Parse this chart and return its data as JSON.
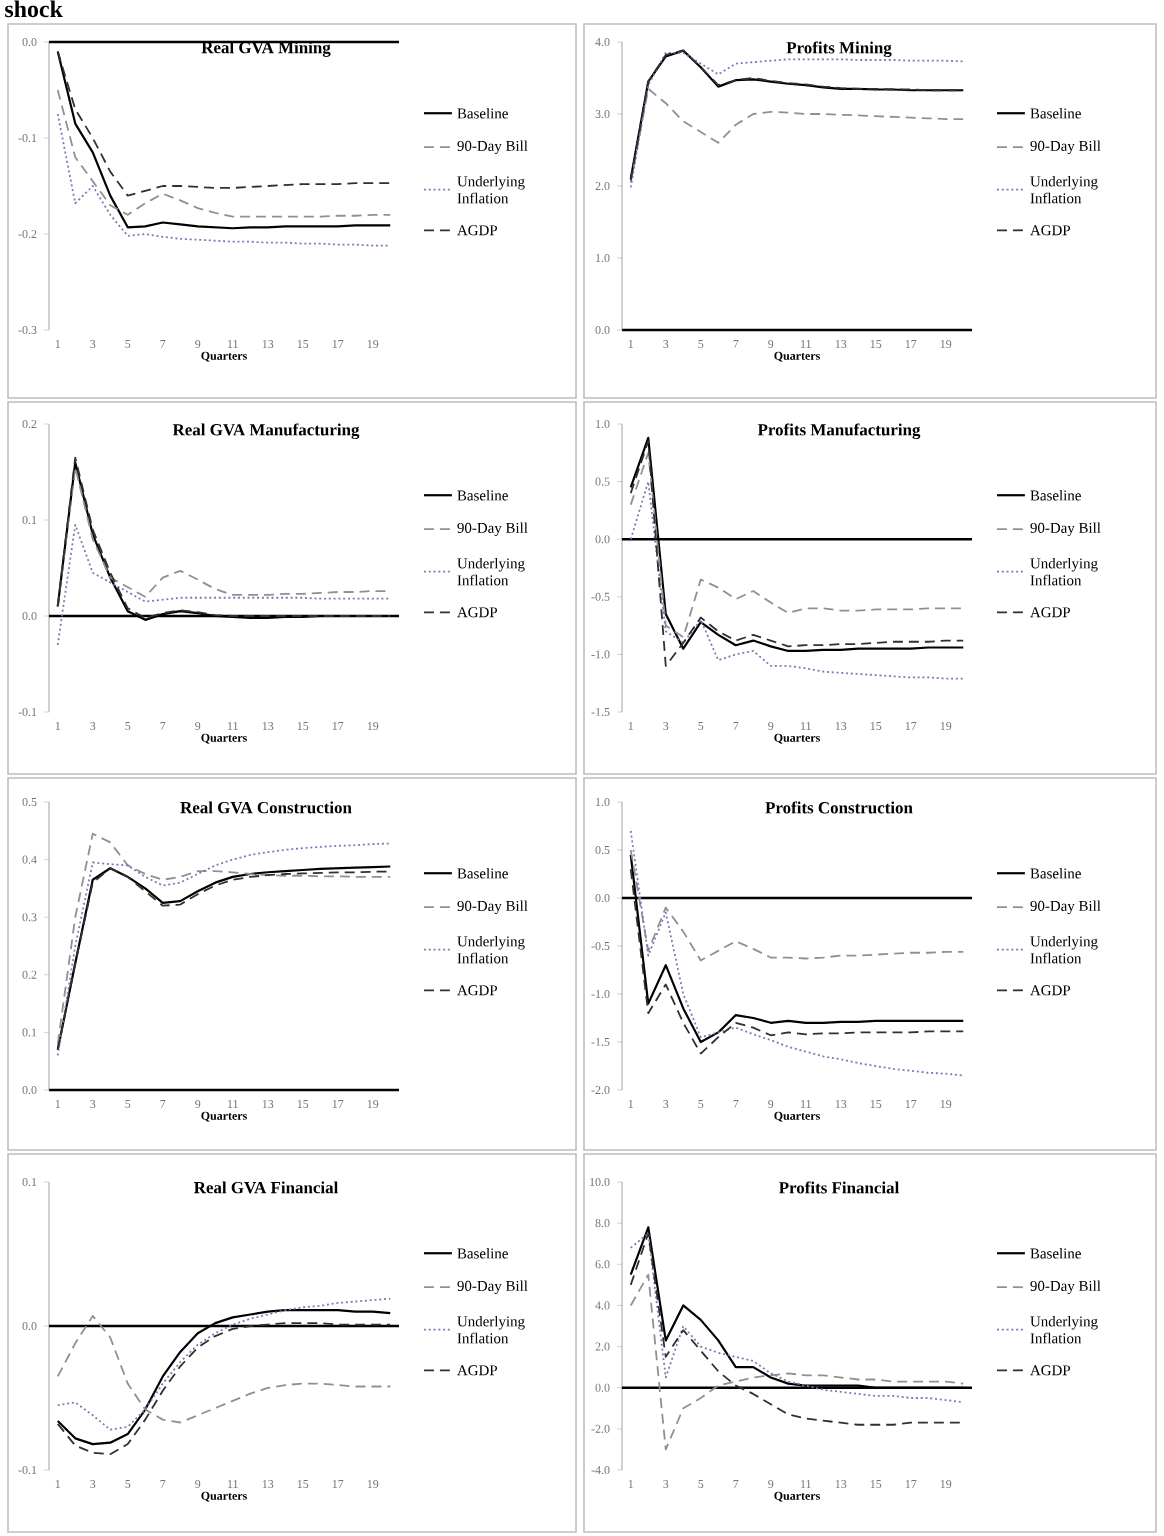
{
  "chart_data": [
    {
      "type": "line",
      "title": "Real GVA Mining",
      "xlabel": "Quarters",
      "annotations": [
        "shock"
      ],
      "legend": "right",
      "categories": [
        "1",
        null,
        "3",
        null,
        "5",
        null,
        "7",
        null,
        "9",
        null,
        "11",
        null,
        "13",
        null,
        "15",
        null,
        "17",
        null,
        "19",
        null
      ],
      "ylim": [
        -0.3,
        0
      ],
      "yticks": [
        {
          "value": -0.3,
          "label": "-0.3"
        },
        {
          "value": -0.2,
          "label": "-0.2"
        },
        {
          "value": -0.1,
          "label": "-0.1"
        },
        {
          "value": 0,
          "label": "0.0"
        }
      ],
      "ref_lines": [
        {
          "axis": "y",
          "value": 0,
          "color": "#000000"
        }
      ],
      "series": [
        {
          "name": "Baseline",
          "color": "#000000",
          "line_style": "solid",
          "values": [
            -0.01,
            -0.085,
            -0.115,
            -0.16,
            -0.193,
            -0.192,
            -0.188,
            -0.19,
            -0.192,
            -0.193,
            -0.194,
            -0.193,
            -0.193,
            -0.192,
            -0.192,
            -0.192,
            -0.192,
            -0.191,
            -0.191,
            -0.191
          ]
        },
        {
          "name": "90-Day Bill",
          "color": "#909090",
          "line_style": "dashed",
          "values": [
            -0.05,
            -0.12,
            -0.145,
            -0.17,
            -0.18,
            -0.168,
            -0.158,
            -0.165,
            -0.173,
            -0.178,
            -0.182,
            -0.182,
            -0.182,
            -0.182,
            -0.182,
            -0.182,
            -0.181,
            -0.181,
            -0.18,
            -0.18
          ]
        },
        {
          "name": "Underlying Inflation",
          "color": "#7a7ab8",
          "line_style": "dotted",
          "values": [
            -0.075,
            -0.168,
            -0.15,
            -0.18,
            -0.202,
            -0.2,
            -0.203,
            -0.205,
            -0.206,
            -0.207,
            -0.208,
            -0.208,
            -0.209,
            -0.209,
            -0.21,
            -0.21,
            -0.211,
            -0.211,
            -0.212,
            -0.212
          ]
        },
        {
          "name": "AGDP",
          "color": "#303030",
          "line_style": "dashed",
          "values": [
            -0.01,
            -0.07,
            -0.1,
            -0.135,
            -0.16,
            -0.155,
            -0.15,
            -0.15,
            -0.151,
            -0.152,
            -0.152,
            -0.151,
            -0.15,
            -0.149,
            -0.148,
            -0.148,
            -0.148,
            -0.147,
            -0.147,
            -0.147
          ]
        }
      ]
    },
    {
      "type": "line",
      "title": "Profits Mining",
      "xlabel": "Quarters",
      "legend": "right",
      "categories": [
        "1",
        null,
        "3",
        null,
        "5",
        null,
        "7",
        null,
        "9",
        null,
        "11",
        null,
        "13",
        null,
        "15",
        null,
        "17",
        null,
        "19",
        null
      ],
      "ylim": [
        0,
        4
      ],
      "yticks": [
        {
          "value": 0,
          "label": "0.0"
        },
        {
          "value": 1,
          "label": "1.0"
        },
        {
          "value": 2,
          "label": "2.0"
        },
        {
          "value": 3,
          "label": "3.0"
        },
        {
          "value": 4,
          "label": "4.0"
        }
      ],
      "series": [
        {
          "name": "Baseline",
          "color": "#000000",
          "line_style": "solid",
          "values": [
            2.1,
            3.45,
            3.8,
            3.88,
            3.65,
            3.38,
            3.47,
            3.48,
            3.45,
            3.42,
            3.4,
            3.37,
            3.35,
            3.35,
            3.34,
            3.34,
            3.33,
            3.33,
            3.33,
            3.33
          ]
        },
        {
          "name": "90-Day Bill",
          "color": "#909090",
          "line_style": "dashed",
          "values": [
            2.05,
            3.35,
            3.15,
            2.9,
            2.75,
            2.6,
            2.85,
            3.0,
            3.03,
            3.02,
            3.0,
            3.0,
            2.99,
            2.98,
            2.97,
            2.96,
            2.95,
            2.94,
            2.93,
            2.93
          ]
        },
        {
          "name": "Underlying Inflation",
          "color": "#7a7ab8",
          "line_style": "dotted",
          "values": [
            1.98,
            3.4,
            3.85,
            3.85,
            3.7,
            3.55,
            3.7,
            3.72,
            3.74,
            3.76,
            3.76,
            3.76,
            3.76,
            3.75,
            3.75,
            3.75,
            3.74,
            3.74,
            3.74,
            3.73
          ]
        },
        {
          "name": "AGDP",
          "color": "#303030",
          "line_style": "dashed",
          "values": [
            2.08,
            3.45,
            3.82,
            3.88,
            3.65,
            3.4,
            3.47,
            3.5,
            3.46,
            3.43,
            3.41,
            3.38,
            3.36,
            3.35,
            3.35,
            3.34,
            3.34,
            3.33,
            3.33,
            3.33
          ]
        }
      ]
    },
    {
      "type": "line",
      "title": "Real GVA Manufacturing",
      "xlabel": "Quarters",
      "legend": "right",
      "categories": [
        "1",
        null,
        "3",
        null,
        "5",
        null,
        "7",
        null,
        "9",
        null,
        "11",
        null,
        "13",
        null,
        "15",
        null,
        "17",
        null,
        "19",
        null
      ],
      "ylim": [
        -0.1,
        0.2
      ],
      "yticks": [
        {
          "value": -0.1,
          "label": "-0.1"
        },
        {
          "value": 0,
          "label": "0.0"
        },
        {
          "value": 0.1,
          "label": "0.1"
        },
        {
          "value": 0.2,
          "label": "0.2"
        }
      ],
      "ref_lines": [
        {
          "axis": "y",
          "value": 0,
          "color": "#000000"
        }
      ],
      "series": [
        {
          "name": "Baseline",
          "color": "#000000",
          "line_style": "solid",
          "values": [
            0.01,
            0.16,
            0.085,
            0.04,
            0.005,
            -0.004,
            0.002,
            0.005,
            0.003,
            0.0,
            -0.001,
            -0.002,
            -0.002,
            -0.001,
            -0.001,
            0,
            0,
            0,
            0,
            0
          ]
        },
        {
          "name": "90-Day Bill",
          "color": "#909090",
          "line_style": "dashed",
          "values": [
            0.01,
            0.155,
            0.08,
            0.04,
            0.03,
            0.02,
            0.04,
            0.047,
            0.038,
            0.028,
            0.022,
            0.022,
            0.022,
            0.023,
            0.023,
            0.024,
            0.025,
            0.025,
            0.026,
            0.026
          ]
        },
        {
          "name": "Underlying Inflation",
          "color": "#7a7ab8",
          "line_style": "dotted",
          "values": [
            -0.03,
            0.095,
            0.045,
            0.035,
            0.025,
            0.015,
            0.017,
            0.019,
            0.019,
            0.019,
            0.019,
            0.019,
            0.019,
            0.019,
            0.019,
            0.018,
            0.018,
            0.018,
            0.018,
            0.018
          ]
        },
        {
          "name": "AGDP",
          "color": "#303030",
          "line_style": "dashed",
          "values": [
            0.01,
            0.165,
            0.09,
            0.045,
            0.008,
            -0.002,
            0.003,
            0.006,
            0.004,
            0.001,
            0,
            0,
            0,
            0,
            0,
            0,
            0,
            0,
            0,
            0
          ]
        }
      ]
    },
    {
      "type": "line",
      "title": "Profits Manufacturing",
      "xlabel": "Quarters",
      "legend": "right",
      "categories": [
        "1",
        null,
        "3",
        null,
        "5",
        null,
        "7",
        null,
        "9",
        null,
        "11",
        null,
        "13",
        null,
        "15",
        null,
        "17",
        null,
        "19",
        null
      ],
      "ylim": [
        -1.5,
        1.0
      ],
      "yticks": [
        {
          "value": -1.5,
          "label": "-1.5"
        },
        {
          "value": -1.0,
          "label": "-1.0"
        },
        {
          "value": -0.5,
          "label": "-0.5"
        },
        {
          "value": 0,
          "label": "0.0"
        },
        {
          "value": 0.5,
          "label": "0.5"
        },
        {
          "value": 1.0,
          "label": "1.0"
        }
      ],
      "ref_lines": [
        {
          "axis": "y",
          "value": 0,
          "color": "#000000"
        }
      ],
      "series": [
        {
          "name": "Baseline",
          "color": "#000000",
          "line_style": "solid",
          "values": [
            0.45,
            0.88,
            -0.65,
            -0.95,
            -0.72,
            -0.83,
            -0.92,
            -0.88,
            -0.93,
            -0.97,
            -0.97,
            -0.96,
            -0.96,
            -0.95,
            -0.95,
            -0.95,
            -0.95,
            -0.94,
            -0.94,
            -0.94
          ]
        },
        {
          "name": "90-Day Bill",
          "color": "#909090",
          "line_style": "dashed",
          "values": [
            0.3,
            0.75,
            -0.75,
            -0.85,
            -0.35,
            -0.42,
            -0.52,
            -0.45,
            -0.55,
            -0.64,
            -0.6,
            -0.6,
            -0.62,
            -0.62,
            -0.61,
            -0.61,
            -0.61,
            -0.6,
            -0.6,
            -0.6
          ]
        },
        {
          "name": "Underlying Inflation",
          "color": "#7a7ab8",
          "line_style": "dotted",
          "values": [
            0.0,
            0.5,
            -0.8,
            -0.9,
            -0.7,
            -1.05,
            -1.0,
            -0.97,
            -1.1,
            -1.1,
            -1.12,
            -1.15,
            -1.16,
            -1.17,
            -1.18,
            -1.19,
            -1.2,
            -1.2,
            -1.21,
            -1.21
          ]
        },
        {
          "name": "AGDP",
          "color": "#303030",
          "line_style": "dashed",
          "values": [
            0.4,
            0.85,
            -1.1,
            -0.9,
            -0.68,
            -0.8,
            -0.88,
            -0.83,
            -0.88,
            -0.93,
            -0.92,
            -0.92,
            -0.91,
            -0.91,
            -0.9,
            -0.89,
            -0.89,
            -0.89,
            -0.88,
            -0.88
          ]
        }
      ]
    },
    {
      "type": "line",
      "title": "Real GVA Construction",
      "xlabel": "Quarters",
      "legend": "right",
      "categories": [
        "1",
        null,
        "3",
        null,
        "5",
        null,
        "7",
        null,
        "9",
        null,
        "11",
        null,
        "13",
        null,
        "15",
        null,
        "17",
        null,
        "19",
        null
      ],
      "ylim": [
        0,
        0.5
      ],
      "yticks": [
        {
          "value": 0,
          "label": "0.0"
        },
        {
          "value": 0.1,
          "label": "0.1"
        },
        {
          "value": 0.2,
          "label": "0.2"
        },
        {
          "value": 0.3,
          "label": "0.3"
        },
        {
          "value": 0.4,
          "label": "0.4"
        },
        {
          "value": 0.5,
          "label": "0.5"
        }
      ],
      "series": [
        {
          "name": "Baseline",
          "color": "#000000",
          "line_style": "solid",
          "values": [
            0.07,
            0.22,
            0.365,
            0.385,
            0.37,
            0.35,
            0.325,
            0.328,
            0.345,
            0.36,
            0.37,
            0.375,
            0.378,
            0.38,
            0.382,
            0.384,
            0.385,
            0.386,
            0.387,
            0.388
          ]
        },
        {
          "name": "90-Day Bill",
          "color": "#909090",
          "line_style": "dashed",
          "values": [
            0.08,
            0.3,
            0.445,
            0.43,
            0.39,
            0.375,
            0.365,
            0.37,
            0.38,
            0.38,
            0.378,
            0.375,
            0.373,
            0.372,
            0.372,
            0.371,
            0.371,
            0.37,
            0.37,
            0.37
          ]
        },
        {
          "name": "Underlying Inflation",
          "color": "#7a7ab8",
          "line_style": "dotted",
          "values": [
            0.06,
            0.25,
            0.395,
            0.392,
            0.39,
            0.37,
            0.355,
            0.36,
            0.375,
            0.39,
            0.4,
            0.408,
            0.413,
            0.417,
            0.42,
            0.422,
            0.424,
            0.425,
            0.427,
            0.428
          ]
        },
        {
          "name": "AGDP",
          "color": "#303030",
          "line_style": "dashed",
          "values": [
            0.07,
            0.22,
            0.36,
            0.385,
            0.37,
            0.345,
            0.32,
            0.322,
            0.34,
            0.355,
            0.365,
            0.37,
            0.373,
            0.375,
            0.376,
            0.377,
            0.378,
            0.378,
            0.379,
            0.379
          ]
        }
      ]
    },
    {
      "type": "line",
      "title": "Profits Construction",
      "xlabel": "Quarters",
      "legend": "right",
      "categories": [
        "1",
        null,
        "3",
        null,
        "5",
        null,
        "7",
        null,
        "9",
        null,
        "11",
        null,
        "13",
        null,
        "15",
        null,
        "17",
        null,
        "19",
        null
      ],
      "ylim": [
        -2.0,
        1.0
      ],
      "yticks": [
        {
          "value": -2.0,
          "label": "-2.0"
        },
        {
          "value": -1.5,
          "label": "-1.5"
        },
        {
          "value": -1.0,
          "label": "-1.0"
        },
        {
          "value": -0.5,
          "label": "-0.5"
        },
        {
          "value": 0,
          "label": "0.0"
        },
        {
          "value": 0.5,
          "label": "0.5"
        },
        {
          "value": 1.0,
          "label": "1.0"
        }
      ],
      "ref_lines": [
        {
          "axis": "y",
          "value": 0,
          "color": "#000000"
        }
      ],
      "series": [
        {
          "name": "Baseline",
          "color": "#000000",
          "line_style": "solid",
          "values": [
            0.45,
            -1.1,
            -0.7,
            -1.15,
            -1.5,
            -1.4,
            -1.22,
            -1.25,
            -1.3,
            -1.28,
            -1.3,
            -1.3,
            -1.29,
            -1.29,
            -1.28,
            -1.28,
            -1.28,
            -1.28,
            -1.28,
            -1.28
          ]
        },
        {
          "name": "90-Day Bill",
          "color": "#909090",
          "line_style": "dashed",
          "values": [
            0.5,
            -0.55,
            -0.1,
            -0.35,
            -0.65,
            -0.55,
            -0.45,
            -0.53,
            -0.62,
            -0.62,
            -0.63,
            -0.62,
            -0.6,
            -0.6,
            -0.59,
            -0.58,
            -0.57,
            -0.57,
            -0.56,
            -0.56
          ]
        },
        {
          "name": "Underlying Inflation",
          "color": "#7a7ab8",
          "line_style": "dotted",
          "values": [
            0.7,
            -0.6,
            -0.15,
            -1.0,
            -1.45,
            -1.4,
            -1.35,
            -1.42,
            -1.48,
            -1.55,
            -1.6,
            -1.65,
            -1.68,
            -1.72,
            -1.75,
            -1.78,
            -1.8,
            -1.82,
            -1.83,
            -1.85
          ]
        },
        {
          "name": "AGDP",
          "color": "#303030",
          "line_style": "dashed",
          "values": [
            0.3,
            -1.2,
            -0.9,
            -1.3,
            -1.62,
            -1.45,
            -1.3,
            -1.35,
            -1.43,
            -1.4,
            -1.42,
            -1.41,
            -1.41,
            -1.4,
            -1.4,
            -1.4,
            -1.4,
            -1.39,
            -1.39,
            -1.39
          ]
        }
      ]
    },
    {
      "type": "line",
      "title": "Real GVA Financial",
      "xlabel": "Quarters",
      "legend": "right",
      "categories": [
        "1",
        null,
        "3",
        null,
        "5",
        null,
        "7",
        null,
        "9",
        null,
        "11",
        null,
        "13",
        null,
        "15",
        null,
        "17",
        null,
        "19",
        null
      ],
      "ylim": [
        -0.1,
        0.1
      ],
      "yticks": [
        {
          "value": -0.1,
          "label": "-0.1"
        },
        {
          "value": 0,
          "label": "0.0"
        },
        {
          "value": 0.1,
          "label": "0.1"
        }
      ],
      "ref_lines": [
        {
          "axis": "y",
          "value": 0,
          "color": "#000000"
        }
      ],
      "series": [
        {
          "name": "Baseline",
          "color": "#000000",
          "line_style": "solid",
          "values": [
            -0.066,
            -0.078,
            -0.082,
            -0.081,
            -0.075,
            -0.058,
            -0.035,
            -0.018,
            -0.005,
            0.002,
            0.006,
            0.008,
            0.01,
            0.011,
            0.011,
            0.011,
            0.011,
            0.01,
            0.01,
            0.009
          ]
        },
        {
          "name": "90-Day Bill",
          "color": "#909090",
          "line_style": "dashed",
          "values": [
            -0.035,
            -0.012,
            0.007,
            -0.008,
            -0.04,
            -0.058,
            -0.065,
            -0.067,
            -0.062,
            -0.057,
            -0.052,
            -0.047,
            -0.043,
            -0.041,
            -0.04,
            -0.04,
            -0.041,
            -0.042,
            -0.042,
            -0.042
          ]
        },
        {
          "name": "Underlying Inflation",
          "color": "#7a7ab8",
          "line_style": "dotted",
          "values": [
            -0.055,
            -0.053,
            -0.062,
            -0.072,
            -0.07,
            -0.058,
            -0.04,
            -0.025,
            -0.013,
            -0.005,
            0.001,
            0.005,
            0.008,
            0.011,
            0.013,
            0.014,
            0.016,
            0.017,
            0.018,
            0.019
          ]
        },
        {
          "name": "AGDP",
          "color": "#303030",
          "line_style": "dashed",
          "values": [
            -0.068,
            -0.083,
            -0.088,
            -0.089,
            -0.082,
            -0.065,
            -0.045,
            -0.028,
            -0.015,
            -0.007,
            -0.002,
            0,
            0.001,
            0.002,
            0.002,
            0.002,
            0.001,
            0.001,
            0.001,
            0.001
          ]
        }
      ]
    },
    {
      "type": "line",
      "title": "Profits Financial",
      "xlabel": "Quarters",
      "legend": "right",
      "categories": [
        "1",
        null,
        "3",
        null,
        "5",
        null,
        "7",
        null,
        "9",
        null,
        "11",
        null,
        "13",
        null,
        "15",
        null,
        "17",
        null,
        "19",
        null
      ],
      "ylim": [
        -4,
        10
      ],
      "yticks": [
        {
          "value": -4,
          "label": "-4.0"
        },
        {
          "value": -2,
          "label": "-2.0"
        },
        {
          "value": 0,
          "label": "0.0"
        },
        {
          "value": 2,
          "label": "2.0"
        },
        {
          "value": 4,
          "label": "4.0"
        },
        {
          "value": 6,
          "label": "6.0"
        },
        {
          "value": 8,
          "label": "8.0"
        },
        {
          "value": 10,
          "label": "10.0"
        }
      ],
      "ref_lines": [
        {
          "axis": "y",
          "value": 0,
          "color": "#000000"
        }
      ],
      "series": [
        {
          "name": "Baseline",
          "color": "#000000",
          "line_style": "solid",
          "values": [
            5.5,
            7.8,
            2.3,
            4.0,
            3.3,
            2.3,
            1.0,
            1.0,
            0.5,
            0.2,
            0.1,
            0.1,
            0.1,
            0.1,
            0,
            0,
            0,
            0,
            0,
            0
          ]
        },
        {
          "name": "90-Day Bill",
          "color": "#909090",
          "line_style": "dashed",
          "values": [
            4.0,
            5.5,
            -3.0,
            -1.0,
            -0.5,
            0.1,
            0.3,
            0.5,
            0.6,
            0.7,
            0.6,
            0.6,
            0.5,
            0.4,
            0.4,
            0.3,
            0.3,
            0.3,
            0.3,
            0.2
          ]
        },
        {
          "name": "Underlying Inflation",
          "color": "#7a7ab8",
          "line_style": "dotted",
          "values": [
            6.8,
            7.5,
            0.5,
            3.0,
            2.0,
            1.7,
            1.5,
            1.3,
            0.7,
            0.3,
            0.1,
            -0.1,
            -0.2,
            -0.3,
            -0.4,
            -0.4,
            -0.5,
            -0.5,
            -0.6,
            -0.7
          ]
        },
        {
          "name": "AGDP",
          "color": "#303030",
          "line_style": "dashed",
          "values": [
            5.0,
            7.5,
            1.5,
            2.8,
            1.8,
            0.8,
            0.1,
            -0.3,
            -0.8,
            -1.3,
            -1.5,
            -1.6,
            -1.7,
            -1.8,
            -1.8,
            -1.8,
            -1.7,
            -1.7,
            -1.7,
            -1.7
          ]
        }
      ]
    }
  ]
}
